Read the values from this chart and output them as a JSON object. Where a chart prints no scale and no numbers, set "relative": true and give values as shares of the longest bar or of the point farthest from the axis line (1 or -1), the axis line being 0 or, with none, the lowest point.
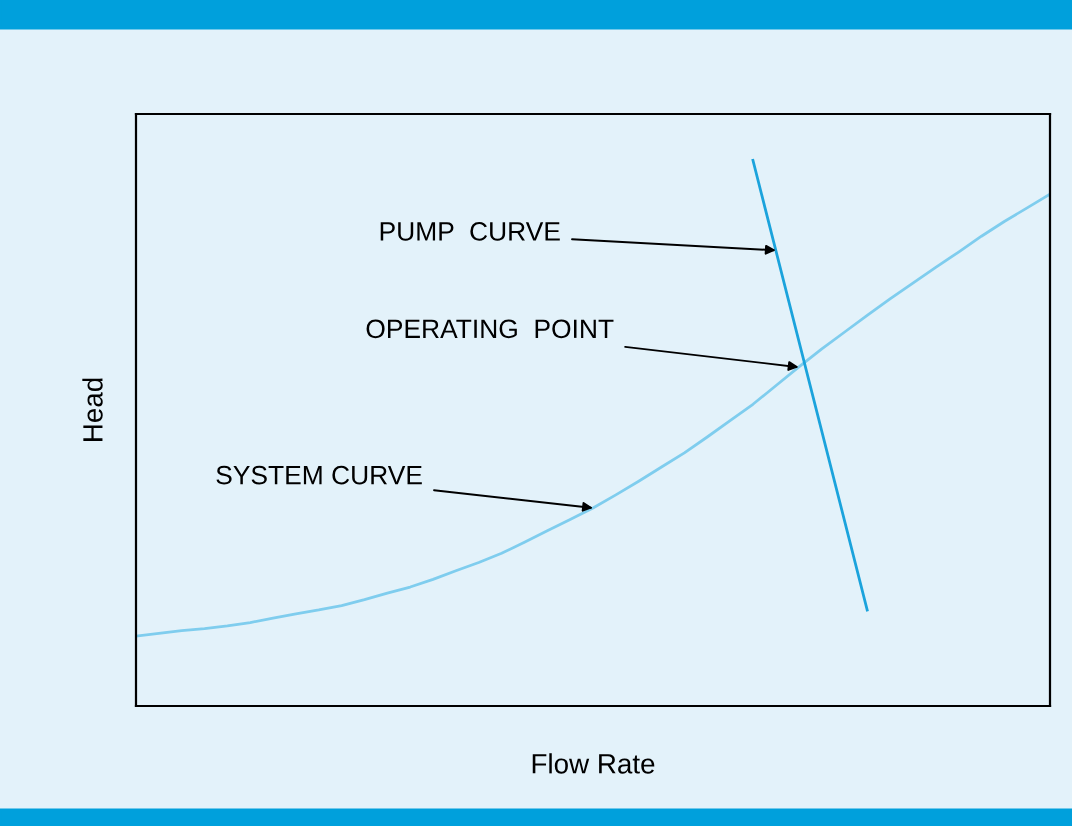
{
  "chart_data": {
    "type": "line",
    "relative": true,
    "xlabel": "Flow Rate",
    "ylabel": "Head",
    "marker": "none",
    "line_style": "solid",
    "categories": [
      null,
      null,
      null,
      null,
      null,
      null,
      null,
      null,
      null,
      null,
      null,
      null,
      null,
      null,
      null,
      null,
      null,
      null,
      null,
      null,
      null,
      null,
      null,
      null,
      null,
      null,
      null,
      null,
      null,
      null,
      null,
      null,
      null,
      null,
      null,
      null,
      null,
      null,
      null,
      null,
      null
    ],
    "series": [
      {
        "color": "#7fcdee",
        "values": [
          0.128,
          0.133,
          0.138,
          0.142,
          0.147,
          0.153,
          0.161,
          0.169,
          0.176,
          0.184,
          0.195,
          0.207,
          0.218,
          0.232,
          0.248,
          0.263,
          0.28,
          0.3,
          0.321,
          0.342,
          0.363,
          0.387,
          0.412,
          0.438,
          0.464,
          0.493,
          0.523,
          0.553,
          0.587,
          0.621,
          0.654,
          0.685,
          0.716,
          0.746,
          0.775,
          0.804,
          0.832,
          0.861,
          0.888,
          0.913,
          0.938
        ]
      },
      {
        "color": "#1ba3dc",
        "values": [
          null,
          null,
          null,
          null,
          null,
          null,
          null,
          null,
          null,
          null,
          null,
          null,
          null,
          null,
          null,
          null,
          null,
          null,
          null,
          null,
          null,
          null,
          null,
          null,
          null,
          null,
          null,
          1.0,
          null,
          null,
          null,
          null,
          0.176,
          null,
          null,
          null,
          null,
          null,
          null,
          null,
          null
        ]
      }
    ],
    "annotations": [
      "PUMP  CURVE",
      "OPERATING  POINT",
      "SYSTEM CURVE"
    ]
  }
}
